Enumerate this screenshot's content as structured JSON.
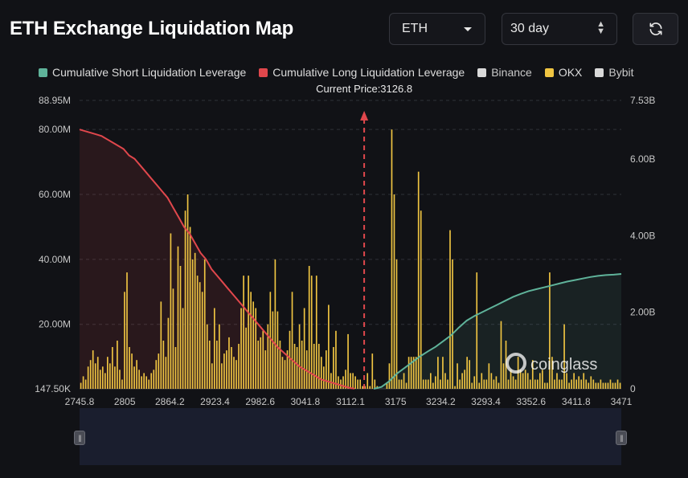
{
  "title": "ETH Exchange Liquidation Map",
  "controls": {
    "coin": "ETH",
    "range": "30 day",
    "refresh_icon": "refresh-icon"
  },
  "legend": [
    {
      "label": "Cumulative Short Liquidation Leverage",
      "color": "#5fb39a"
    },
    {
      "label": "Cumulative Long Liquidation Leverage",
      "color": "#e0474c"
    },
    {
      "label": "Binance",
      "color": "#d9d9d9"
    },
    {
      "label": "OKX",
      "color": "#f0c542"
    },
    {
      "label": "Bybit",
      "color": "#d9d9d9"
    }
  ],
  "watermark": "coinglass",
  "chart_data": {
    "type": "bar",
    "title": "ETH Exchange Liquidation Map",
    "current_price_label": "Current Price:3126.8",
    "current_price": 3126.8,
    "x_range": [
      2745.8,
      3471
    ],
    "x_ticks": [
      "2745.8",
      "2805",
      "2864.2",
      "2923.4",
      "2982.6",
      "3041.8",
      "3112.1",
      "3175",
      "3234.2",
      "3293.4",
      "3352.6",
      "3411.8",
      "3471"
    ],
    "y_left_ticks": [
      "88.95M",
      "80.00M",
      "60.00M",
      "40.00M",
      "20.00M",
      "147.50K"
    ],
    "y_left_range": [
      0.1475,
      88.95
    ],
    "y_right_ticks": [
      "7.53B",
      "6.00B",
      "4.00B",
      "2.00B",
      "0"
    ],
    "y_right_range": [
      0,
      7.53
    ],
    "okx_bars_millions": [
      2,
      4,
      3,
      7,
      9,
      12,
      8,
      10,
      6,
      7,
      5,
      10,
      8,
      13,
      7,
      15,
      6,
      3,
      30,
      36,
      13,
      11,
      7,
      9,
      6,
      4,
      5,
      4,
      3,
      5,
      6,
      9,
      11,
      27,
      15,
      10,
      22,
      48,
      31,
      13,
      44,
      38,
      25,
      55,
      60,
      50,
      40,
      42,
      35,
      33,
      30,
      40,
      20,
      15,
      8,
      25,
      15,
      20,
      8,
      11,
      12,
      16,
      13,
      10,
      9,
      14,
      25,
      35,
      19,
      35,
      30,
      27,
      25,
      15,
      16,
      18,
      12,
      20,
      30,
      24,
      40,
      24,
      15,
      10,
      9,
      12,
      18,
      30,
      14,
      13,
      20,
      15,
      25,
      12,
      38,
      35,
      14,
      35,
      14,
      10,
      7,
      12,
      26,
      5,
      13,
      18,
      4,
      3,
      4,
      6,
      17,
      5,
      5,
      4,
      3,
      3,
      1,
      1,
      5,
      1,
      11,
      3,
      1,
      0,
      0,
      0,
      2,
      8,
      80,
      60,
      40,
      3,
      3,
      5,
      2,
      10,
      10,
      10,
      10,
      67,
      55,
      3,
      3,
      3,
      5,
      2,
      4,
      10,
      3,
      10,
      5,
      3,
      49,
      40,
      1,
      8,
      3,
      5,
      6,
      10,
      9,
      2,
      4,
      36,
      2,
      5,
      3,
      3,
      8,
      5,
      3,
      4,
      2,
      21,
      8,
      15,
      3,
      6,
      4,
      3,
      10,
      6,
      5,
      6,
      5,
      3,
      9,
      3,
      3,
      5,
      6,
      2,
      2,
      36,
      10,
      3,
      5,
      3,
      3,
      20,
      5,
      2,
      3,
      5,
      3,
      4,
      3,
      5,
      3,
      2,
      4,
      3,
      2,
      2,
      3,
      2,
      2,
      2,
      3,
      2,
      2,
      3,
      2
    ],
    "long_cumulative_millions": [
      80,
      79.5,
      79,
      78.5,
      78,
      77,
      76,
      75,
      74,
      72,
      71,
      69,
      67,
      65,
      63,
      61,
      59,
      56,
      53,
      50,
      48,
      45,
      42,
      40,
      37,
      35,
      33,
      31,
      29,
      27,
      25,
      23,
      21,
      19,
      17,
      15,
      13,
      11.5,
      10,
      8.5,
      7,
      6,
      5,
      4,
      3,
      2.5,
      2,
      1.5,
      1,
      0.5,
      0.2
    ],
    "short_cumulative_billions": [
      0,
      0.05,
      0.2,
      0.4,
      0.55,
      0.7,
      0.85,
      0.98,
      1.1,
      1.25,
      1.4,
      1.6,
      1.78,
      1.9,
      2.0,
      2.1,
      2.2,
      2.3,
      2.4,
      2.48,
      2.55,
      2.6,
      2.65,
      2.7,
      2.75,
      2.8,
      2.84,
      2.88,
      2.92,
      2.95,
      2.97,
      2.98,
      3.0
    ]
  }
}
